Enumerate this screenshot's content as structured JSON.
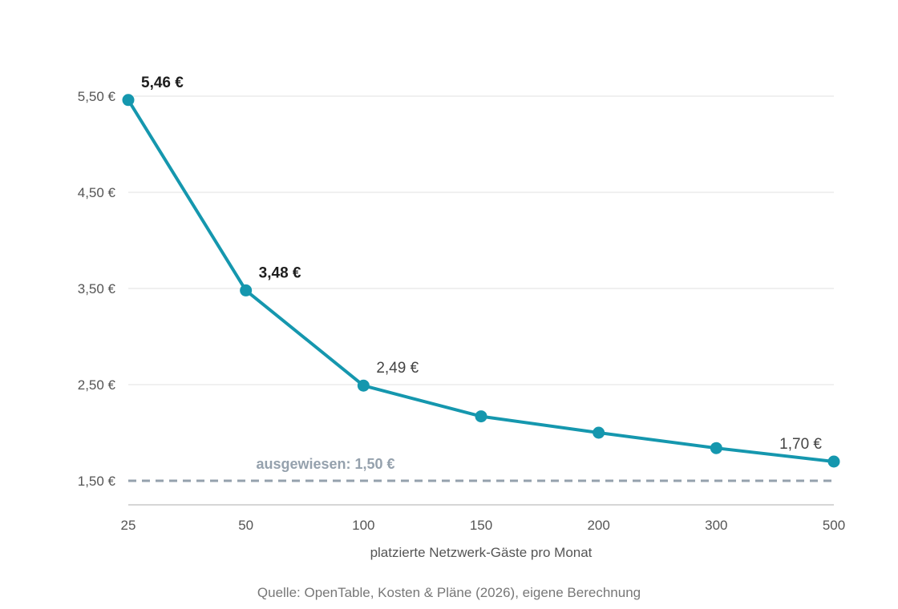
{
  "chart_data": {
    "type": "line",
    "categories": [
      "25",
      "50",
      "100",
      "150",
      "200",
      "300",
      "500"
    ],
    "series": [
      {
        "values": [
          5.46,
          3.48,
          2.49,
          2.17,
          2.0,
          1.84,
          1.7
        ],
        "color": "#1597ae"
      }
    ],
    "data_labels": [
      {
        "index": 0,
        "text": "5,46 €",
        "bold": true
      },
      {
        "index": 1,
        "text": "3,48 €",
        "bold": true
      },
      {
        "index": 2,
        "text": "2,49 €",
        "bold": false
      },
      {
        "index": 6,
        "text": "1,70 €",
        "bold": false
      }
    ],
    "reference_line": {
      "value": 1.5,
      "label": "ausgewiesen: 1,50 €",
      "color": "#95a1ad"
    },
    "yticks": [
      {
        "value": 1.5,
        "label": "1,50 €"
      },
      {
        "value": 2.5,
        "label": "2,50 €"
      },
      {
        "value": 3.5,
        "label": "3,50 €"
      },
      {
        "value": 4.5,
        "label": "4,50 €"
      },
      {
        "value": 5.5,
        "label": "5,50 €"
      }
    ],
    "ylim": [
      1.25,
      5.5
    ],
    "xlabel": "platzierte Netzwerk-Gäste pro Monat",
    "ylabel": "",
    "title": "",
    "grid": true,
    "legend": "none",
    "source": "Quelle: OpenTable, Kosten & Pläne (2026), eigene Berechnung"
  }
}
